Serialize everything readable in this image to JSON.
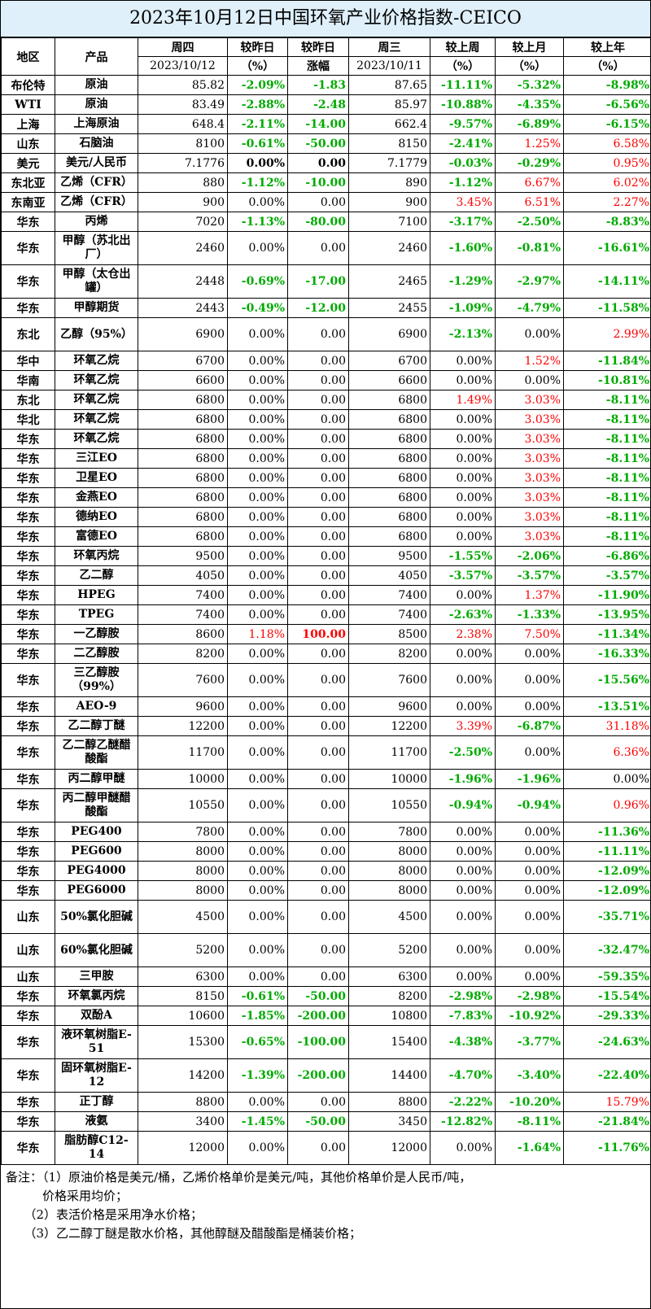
{
  "title": "2023年10月12日中国环氧产业价格指数-CEICO",
  "headers": {
    "region": "地区",
    "product": "产品",
    "thu": "周四",
    "thu_date": "2023/10/12",
    "chg_pct": "较昨日",
    "chg_pct_unit": "（%）",
    "chg_amt": "较昨日",
    "chg_amt_unit": "涨幅",
    "wed": "周三",
    "wed_date": "2023/10/11",
    "week": "较上周",
    "week_unit": "（%）",
    "month": "较上月",
    "month_unit": "（%）",
    "year": "较上年",
    "year_unit": "（%）"
  },
  "rows": [
    {
      "region": "布伦特",
      "product": "原油",
      "thu": "85.82",
      "d_pct": "-2.09%",
      "d_amt": "-1.83",
      "wed": "87.65",
      "week": "-11.11%",
      "month": "-5.32%",
      "year": "-8.98%"
    },
    {
      "region": "WTI",
      "product": "原油",
      "thu": "83.49",
      "d_pct": "-2.88%",
      "d_amt": "-2.48",
      "wed": "85.97",
      "week": "-10.88%",
      "month": "-4.35%",
      "year": "-6.56%"
    },
    {
      "region": "上海",
      "product": "上海原油",
      "thu": "648.4",
      "d_pct": "-2.11%",
      "d_amt": "-14.00",
      "wed": "662.4",
      "week": "-9.57%",
      "month": "-6.89%",
      "year": "-6.15%"
    },
    {
      "region": "山东",
      "product": "石脑油",
      "thu": "8100",
      "d_pct": "-0.61%",
      "d_amt": "-50.00",
      "wed": "8150",
      "week": "-2.41%",
      "month": "1.25%",
      "year": "6.58%"
    },
    {
      "region": "美元",
      "product": "美元/人民币",
      "thu": "7.1776",
      "d_pct": "0.00%",
      "d_amt": "0.00",
      "wed": "7.1779",
      "week": "-0.03%",
      "month": "-0.29%",
      "year": "0.95%",
      "zero_bold": true
    },
    {
      "region": "东北亚",
      "product": "乙烯（CFR）",
      "thu": "880",
      "d_pct": "-1.12%",
      "d_amt": "-10.00",
      "wed": "890",
      "week": "-1.12%",
      "month": "6.67%",
      "year": "6.02%"
    },
    {
      "region": "东南亚",
      "product": "乙烯（CFR）",
      "thu": "900",
      "d_pct": "0.00%",
      "d_amt": "0.00",
      "wed": "900",
      "week": "3.45%",
      "month": "6.51%",
      "year": "2.27%"
    },
    {
      "region": "华东",
      "product": "丙烯",
      "thu": "7020",
      "d_pct": "-1.13%",
      "d_amt": "-80.00",
      "wed": "7100",
      "week": "-3.17%",
      "month": "-2.50%",
      "year": "-8.83%"
    },
    {
      "region": "华东",
      "product": "甲醇（苏北出厂）",
      "thu": "2460",
      "d_pct": "0.00%",
      "d_amt": "0.00",
      "wed": "2460",
      "week": "-1.60%",
      "month": "-0.81%",
      "year": "-16.61%",
      "tall": true
    },
    {
      "region": "华东",
      "product": "甲醇（太仓出罐）",
      "thu": "2448",
      "d_pct": "-0.69%",
      "d_amt": "-17.00",
      "wed": "2465",
      "week": "-1.29%",
      "month": "-2.97%",
      "year": "-14.11%",
      "tall": true
    },
    {
      "region": "华东",
      "product": "甲醇期货",
      "thu": "2443",
      "d_pct": "-0.49%",
      "d_amt": "-12.00",
      "wed": "2455",
      "week": "-1.09%",
      "month": "-4.79%",
      "year": "-11.58%"
    },
    {
      "region": "东北",
      "product": "乙醇（95%）",
      "thu": "6900",
      "d_pct": "0.00%",
      "d_amt": "0.00",
      "wed": "6900",
      "week": "-2.13%",
      "month": "0.00%",
      "year": "2.99%",
      "tall": true
    },
    {
      "region": "华中",
      "product": "环氧乙烷",
      "thu": "6700",
      "d_pct": "0.00%",
      "d_amt": "0.00",
      "wed": "6700",
      "week": "0.00%",
      "month": "1.52%",
      "year": "-11.84%"
    },
    {
      "region": "华南",
      "product": "环氧乙烷",
      "thu": "6600",
      "d_pct": "0.00%",
      "d_amt": "0.00",
      "wed": "6600",
      "week": "0.00%",
      "month": "0.00%",
      "year": "-10.81%"
    },
    {
      "region": "东北",
      "product": "环氧乙烷",
      "thu": "6800",
      "d_pct": "0.00%",
      "d_amt": "0.00",
      "wed": "6800",
      "week": "1.49%",
      "month": "3.03%",
      "year": "-8.11%"
    },
    {
      "region": "华北",
      "product": "环氧乙烷",
      "thu": "6800",
      "d_pct": "0.00%",
      "d_amt": "0.00",
      "wed": "6800",
      "week": "0.00%",
      "month": "3.03%",
      "year": "-8.11%"
    },
    {
      "region": "华东",
      "product": "环氧乙烷",
      "thu": "6800",
      "d_pct": "0.00%",
      "d_amt": "0.00",
      "wed": "6800",
      "week": "0.00%",
      "month": "3.03%",
      "year": "-8.11%"
    },
    {
      "region": "华东",
      "product": "三江EO",
      "thu": "6800",
      "d_pct": "0.00%",
      "d_amt": "0.00",
      "wed": "6800",
      "week": "0.00%",
      "month": "3.03%",
      "year": "-8.11%"
    },
    {
      "region": "华东",
      "product": "卫星EO",
      "thu": "6800",
      "d_pct": "0.00%",
      "d_amt": "0.00",
      "wed": "6800",
      "week": "0.00%",
      "month": "3.03%",
      "year": "-8.11%"
    },
    {
      "region": "华东",
      "product": "金燕EO",
      "thu": "6800",
      "d_pct": "0.00%",
      "d_amt": "0.00",
      "wed": "6800",
      "week": "0.00%",
      "month": "3.03%",
      "year": "-8.11%"
    },
    {
      "region": "华东",
      "product": "德纳EO",
      "thu": "6800",
      "d_pct": "0.00%",
      "d_amt": "0.00",
      "wed": "6800",
      "week": "0.00%",
      "month": "3.03%",
      "year": "-8.11%"
    },
    {
      "region": "华东",
      "product": "富德EO",
      "thu": "6800",
      "d_pct": "0.00%",
      "d_amt": "0.00",
      "wed": "6800",
      "week": "0.00%",
      "month": "3.03%",
      "year": "-8.11%"
    },
    {
      "region": "华东",
      "product": "环氧丙烷",
      "thu": "9500",
      "d_pct": "0.00%",
      "d_amt": "0.00",
      "wed": "9500",
      "week": "-1.55%",
      "month": "-2.06%",
      "year": "-6.86%"
    },
    {
      "region": "华东",
      "product": "乙二醇",
      "thu": "4050",
      "d_pct": "0.00%",
      "d_amt": "0.00",
      "wed": "4050",
      "week": "-3.57%",
      "month": "-3.57%",
      "year": "-3.57%"
    },
    {
      "region": "华东",
      "product": "HPEG",
      "thu": "7400",
      "d_pct": "0.00%",
      "d_amt": "0.00",
      "wed": "7400",
      "week": "0.00%",
      "month": "1.37%",
      "year": "-11.90%"
    },
    {
      "region": "华东",
      "product": "TPEG",
      "thu": "7400",
      "d_pct": "0.00%",
      "d_amt": "0.00",
      "wed": "7400",
      "week": "-2.63%",
      "month": "-1.33%",
      "year": "-13.95%"
    },
    {
      "region": "华东",
      "product": "一乙醇胺",
      "thu": "8600",
      "d_pct": "1.18%",
      "d_amt": "100.00",
      "wed": "8500",
      "week": "2.38%",
      "month": "7.50%",
      "year": "-11.34%",
      "amt_bold": true
    },
    {
      "region": "华东",
      "product": "二乙醇胺",
      "thu": "8200",
      "d_pct": "0.00%",
      "d_amt": "0.00",
      "wed": "8200",
      "week": "0.00%",
      "month": "0.00%",
      "year": "-16.33%"
    },
    {
      "region": "华东",
      "product": "三乙醇胺（99%）",
      "thu": "7600",
      "d_pct": "0.00%",
      "d_amt": "0.00",
      "wed": "7600",
      "week": "0.00%",
      "month": "0.00%",
      "year": "-15.56%",
      "tall": true
    },
    {
      "region": "华东",
      "product": "AEO-9",
      "thu": "9600",
      "d_pct": "0.00%",
      "d_amt": "0.00",
      "wed": "9600",
      "week": "0.00%",
      "month": "0.00%",
      "year": "-13.51%"
    },
    {
      "region": "华东",
      "product": "乙二醇丁醚",
      "thu": "12200",
      "d_pct": "0.00%",
      "d_amt": "0.00",
      "wed": "12200",
      "week": "3.39%",
      "month": "-6.87%",
      "year": "31.18%"
    },
    {
      "region": "华东",
      "product": "乙二醇乙醚醋酸酯",
      "thu": "11700",
      "d_pct": "0.00%",
      "d_amt": "0.00",
      "wed": "11700",
      "week": "-2.50%",
      "month": "0.00%",
      "year": "6.36%",
      "tall": true
    },
    {
      "region": "华东",
      "product": "丙二醇甲醚",
      "thu": "10000",
      "d_pct": "0.00%",
      "d_amt": "0.00",
      "wed": "10000",
      "week": "-1.96%",
      "month": "-1.96%",
      "year": "0.00%"
    },
    {
      "region": "华东",
      "product": "丙二醇甲醚醋酸酯",
      "thu": "10550",
      "d_pct": "0.00%",
      "d_amt": "0.00",
      "wed": "10550",
      "week": "-0.94%",
      "month": "-0.94%",
      "year": "0.96%",
      "tall": true
    },
    {
      "region": "华东",
      "product": "PEG400",
      "thu": "7800",
      "d_pct": "0.00%",
      "d_amt": "0.00",
      "wed": "7800",
      "week": "0.00%",
      "month": "0.00%",
      "year": "-11.36%"
    },
    {
      "region": "华东",
      "product": "PEG600",
      "thu": "8000",
      "d_pct": "0.00%",
      "d_amt": "0.00",
      "wed": "8000",
      "week": "0.00%",
      "month": "0.00%",
      "year": "-11.11%"
    },
    {
      "region": "华东",
      "product": "PEG4000",
      "thu": "8000",
      "d_pct": "0.00%",
      "d_amt": "0.00",
      "wed": "8000",
      "week": "0.00%",
      "month": "0.00%",
      "year": "-12.09%"
    },
    {
      "region": "华东",
      "product": "PEG6000",
      "thu": "8000",
      "d_pct": "0.00%",
      "d_amt": "0.00",
      "wed": "8000",
      "week": "0.00%",
      "month": "0.00%",
      "year": "-12.09%"
    },
    {
      "region": "山东",
      "product": "50%氯化胆碱",
      "thu": "4500",
      "d_pct": "0.00%",
      "d_amt": "0.00",
      "wed": "4500",
      "week": "0.00%",
      "month": "0.00%",
      "year": "-35.71%",
      "tall": true
    },
    {
      "region": "山东",
      "product": "60%氯化胆碱",
      "thu": "5200",
      "d_pct": "0.00%",
      "d_amt": "0.00",
      "wed": "5200",
      "week": "0.00%",
      "month": "0.00%",
      "year": "-32.47%",
      "tall": true
    },
    {
      "region": "山东",
      "product": "三甲胺",
      "thu": "6300",
      "d_pct": "0.00%",
      "d_amt": "0.00",
      "wed": "6300",
      "week": "0.00%",
      "month": "0.00%",
      "year": "-59.35%"
    },
    {
      "region": "华东",
      "product": "环氧氯丙烷",
      "thu": "8150",
      "d_pct": "-0.61%",
      "d_amt": "-50.00",
      "wed": "8200",
      "week": "-2.98%",
      "month": "-2.98%",
      "year": "-15.54%"
    },
    {
      "region": "华东",
      "product": "双酚A",
      "thu": "10600",
      "d_pct": "-1.85%",
      "d_amt": "-200.00",
      "wed": "10800",
      "week": "-7.83%",
      "month": "-10.92%",
      "year": "-29.33%"
    },
    {
      "region": "华东",
      "product": "液环氧树脂E-51",
      "thu": "15300",
      "d_pct": "-0.65%",
      "d_amt": "-100.00",
      "wed": "15400",
      "week": "-4.38%",
      "month": "-3.77%",
      "year": "-24.63%",
      "tall": true
    },
    {
      "region": "华东",
      "product": "固环氧树脂E-12",
      "thu": "14200",
      "d_pct": "-1.39%",
      "d_amt": "-200.00",
      "wed": "14400",
      "week": "-4.70%",
      "month": "-3.40%",
      "year": "-22.40%",
      "tall": true
    },
    {
      "region": "华东",
      "product": "正丁醇",
      "thu": "8800",
      "d_pct": "0.00%",
      "d_amt": "0.00",
      "wed": "8800",
      "week": "-2.22%",
      "month": "-10.20%",
      "year": "15.79%"
    },
    {
      "region": "华东",
      "product": "液氨",
      "thu": "3400",
      "d_pct": "-1.45%",
      "d_amt": "-50.00",
      "wed": "3450",
      "week": "-12.82%",
      "month": "-8.11%",
      "year": "-21.84%"
    },
    {
      "region": "华东",
      "product": "脂肪醇C12-14",
      "thu": "12000",
      "d_pct": "0.00%",
      "d_amt": "0.00",
      "wed": "12000",
      "week": "0.00%",
      "month": "-1.64%",
      "year": "-11.76%",
      "tall": true
    }
  ],
  "notes": [
    "备注：（1）原油价格是美元/桶，乙烯价格单价是美元/吨，其他价格单价是人民币/吨，",
    "　　　价格采用均价；",
    "　　（2）表活价格是采用净水价格；",
    "　　（3）乙二醇丁醚是散水价格，其他醇醚及醋酸酯是桶装价格；"
  ]
}
